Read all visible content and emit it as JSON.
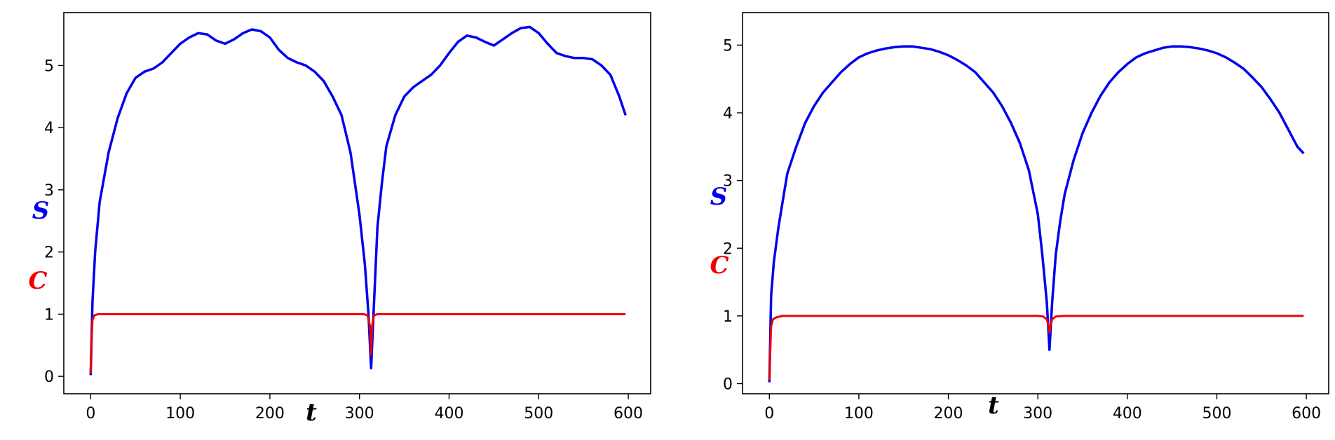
{
  "colors": {
    "S": "#0000ee",
    "C": "#ee0000",
    "axis": "#000000",
    "background": "#ffffff"
  },
  "chart_data": [
    {
      "type": "line",
      "title": "",
      "xlabel": "t",
      "ylabels": [
        "S",
        "C"
      ],
      "xlim": [
        -30,
        625
      ],
      "ylim": [
        -0.28,
        5.85
      ],
      "xticks": [
        0,
        100,
        200,
        300,
        400,
        500,
        600
      ],
      "yticks": [
        0,
        1,
        2,
        3,
        4,
        5
      ],
      "grid": false,
      "legend": "none",
      "series": [
        {
          "name": "S",
          "color": "#0000ee",
          "x": [
            0,
            2,
            5,
            10,
            20,
            30,
            40,
            50,
            60,
            70,
            80,
            90,
            100,
            110,
            120,
            130,
            140,
            150,
            160,
            170,
            180,
            190,
            200,
            210,
            220,
            230,
            240,
            250,
            260,
            270,
            280,
            290,
            300,
            306,
            310,
            313,
            316,
            320,
            325,
            330,
            340,
            350,
            360,
            370,
            380,
            390,
            400,
            410,
            420,
            430,
            440,
            450,
            460,
            470,
            480,
            490,
            500,
            510,
            520,
            530,
            540,
            550,
            560,
            570,
            580,
            590,
            597
          ],
          "y": [
            0.02,
            1.2,
            2.0,
            2.8,
            3.6,
            4.15,
            4.55,
            4.8,
            4.9,
            4.95,
            5.05,
            5.2,
            5.35,
            5.45,
            5.52,
            5.5,
            5.4,
            5.35,
            5.42,
            5.52,
            5.58,
            5.55,
            5.45,
            5.25,
            5.12,
            5.05,
            5.0,
            4.9,
            4.75,
            4.5,
            4.2,
            3.6,
            2.6,
            1.8,
            1.0,
            0.13,
            1.1,
            2.4,
            3.1,
            3.7,
            4.2,
            4.5,
            4.65,
            4.75,
            4.85,
            5.0,
            5.2,
            5.38,
            5.48,
            5.45,
            5.38,
            5.32,
            5.42,
            5.52,
            5.6,
            5.62,
            5.52,
            5.35,
            5.2,
            5.15,
            5.12,
            5.12,
            5.1,
            5.0,
            4.85,
            4.5,
            4.2
          ]
        },
        {
          "name": "C",
          "color": "#ee0000",
          "x": [
            0,
            1,
            2,
            4,
            8,
            50,
            200,
            305,
            309,
            312,
            313,
            314,
            316,
            320,
            400,
            597
          ],
          "y": [
            0.05,
            0.6,
            0.9,
            0.98,
            1.0,
            1.0,
            1.0,
            1.0,
            0.98,
            0.8,
            0.35,
            0.8,
            0.98,
            1.0,
            1.0,
            1.0
          ]
        }
      ]
    },
    {
      "type": "line",
      "title": "",
      "xlabel": "t",
      "ylabels": [
        "S",
        "C"
      ],
      "xlim": [
        -30,
        625
      ],
      "ylim": [
        -0.15,
        5.48
      ],
      "xticks": [
        0,
        100,
        200,
        300,
        400,
        500,
        600
      ],
      "yticks": [
        0,
        1,
        2,
        3,
        4,
        5
      ],
      "grid": false,
      "legend": "none",
      "series": [
        {
          "name": "S",
          "color": "#0000ee",
          "x": [
            0,
            2,
            5,
            10,
            15,
            20,
            30,
            40,
            50,
            60,
            70,
            80,
            90,
            100,
            110,
            120,
            130,
            140,
            150,
            160,
            170,
            180,
            190,
            200,
            210,
            220,
            230,
            240,
            250,
            260,
            270,
            280,
            290,
            300,
            305,
            310,
            313,
            316,
            320,
            325,
            330,
            340,
            350,
            360,
            370,
            380,
            390,
            400,
            410,
            420,
            430,
            440,
            450,
            460,
            470,
            480,
            490,
            500,
            510,
            520,
            530,
            540,
            550,
            560,
            570,
            580,
            590,
            597
          ],
          "y": [
            0.02,
            1.3,
            1.8,
            2.3,
            2.7,
            3.1,
            3.5,
            3.85,
            4.1,
            4.3,
            4.45,
            4.6,
            4.72,
            4.82,
            4.88,
            4.92,
            4.95,
            4.97,
            4.98,
            4.98,
            4.96,
            4.94,
            4.9,
            4.85,
            4.78,
            4.7,
            4.6,
            4.45,
            4.3,
            4.1,
            3.85,
            3.55,
            3.15,
            2.5,
            1.9,
            1.2,
            0.5,
            1.2,
            1.9,
            2.4,
            2.8,
            3.3,
            3.7,
            4.0,
            4.25,
            4.45,
            4.6,
            4.72,
            4.82,
            4.88,
            4.92,
            4.96,
            4.98,
            4.98,
            4.97,
            4.95,
            4.92,
            4.88,
            4.82,
            4.74,
            4.65,
            4.52,
            4.38,
            4.2,
            4.0,
            3.75,
            3.5,
            3.4
          ]
        },
        {
          "name": "C",
          "color": "#ee0000",
          "x": [
            0,
            1,
            2,
            4,
            8,
            15,
            50,
            200,
            300,
            306,
            310,
            312,
            313,
            314,
            316,
            320,
            330,
            400,
            597
          ],
          "y": [
            0.05,
            0.5,
            0.85,
            0.95,
            0.98,
            1.0,
            1.0,
            1.0,
            1.0,
            0.99,
            0.95,
            0.85,
            0.75,
            0.85,
            0.95,
            0.99,
            1.0,
            1.0,
            1.0
          ]
        }
      ]
    }
  ]
}
